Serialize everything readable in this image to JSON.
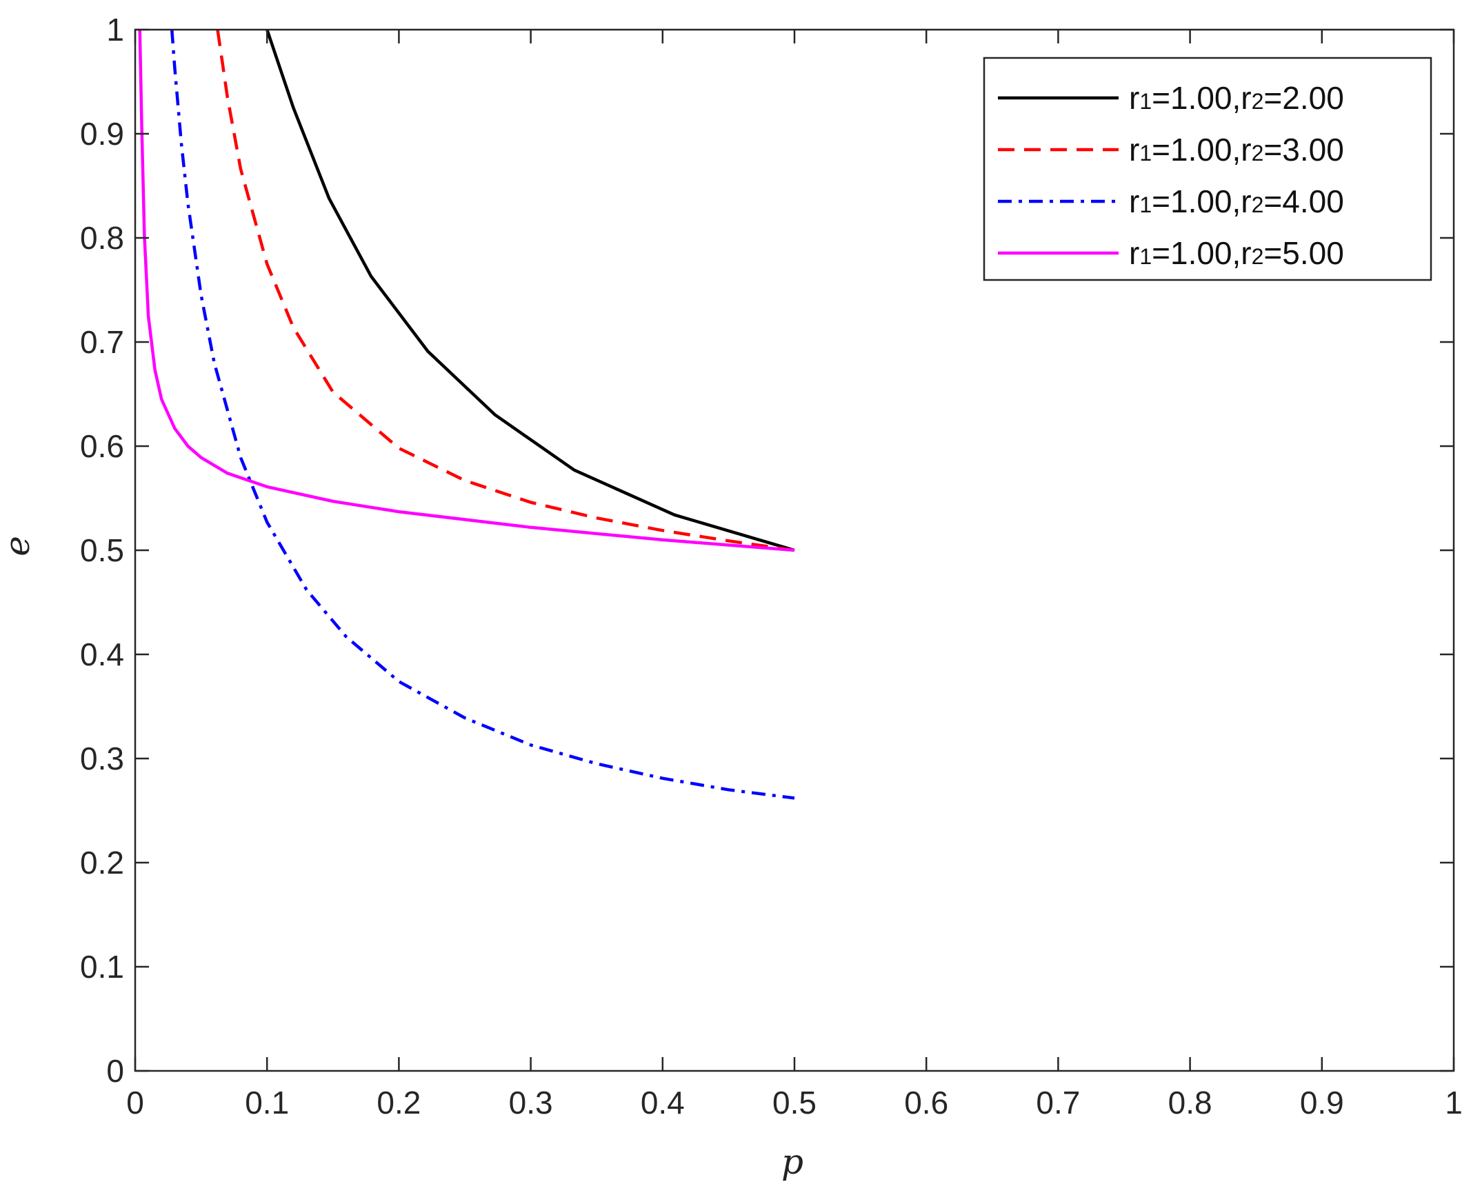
{
  "chart_data": {
    "type": "line",
    "xlabel": "p",
    "ylabel": "e",
    "xlim": [
      0,
      1
    ],
    "ylim": [
      0,
      1
    ],
    "xticks": [
      0,
      0.1,
      0.2,
      0.3,
      0.4,
      0.5,
      0.6,
      0.7,
      0.8,
      0.9,
      1
    ],
    "xtick_labels": [
      "0",
      "0.1",
      "0.2",
      "0.3",
      "0.4",
      "0.5",
      "0.6",
      "0.7",
      "0.8",
      "0.9",
      "1"
    ],
    "yticks": [
      0,
      0.1,
      0.2,
      0.3,
      0.4,
      0.5,
      0.6,
      0.7,
      0.8,
      0.9,
      1
    ],
    "ytick_labels": [
      "0",
      "0.1",
      "0.2",
      "0.3",
      "0.4",
      "0.5",
      "0.6",
      "0.7",
      "0.8",
      "0.9",
      "1"
    ],
    "grid": false,
    "legend_position": "top-right",
    "series": [
      {
        "name": "r1=1.00,r2=2.00",
        "label_parts": [
          [
            "r",
            "1",
            "=1.00,r",
            "2",
            "=2.00"
          ]
        ],
        "color": "#000000",
        "style": "solid",
        "x": [
          0.1,
          0.12,
          0.147,
          0.179,
          0.222,
          0.273,
          0.333,
          0.409,
          0.5
        ],
        "y": [
          1.0,
          0.925,
          0.838,
          0.763,
          0.691,
          0.63,
          0.577,
          0.534,
          0.5
        ]
      },
      {
        "name": "r1=1.00,r2=3.00",
        "label_parts": [
          [
            "r",
            "1",
            "=1.00,r",
            "2",
            "=3.00"
          ]
        ],
        "color": "#ff0000",
        "style": "dashed",
        "x": [
          0.0625,
          0.07,
          0.08,
          0.1,
          0.12,
          0.15,
          0.2,
          0.25,
          0.3,
          0.35,
          0.4,
          0.45,
          0.5
        ],
        "y": [
          1.0,
          0.935,
          0.866,
          0.775,
          0.714,
          0.652,
          0.598,
          0.567,
          0.546,
          0.531,
          0.519,
          0.509,
          0.5
        ]
      },
      {
        "name": "r1=1.00,r2=4.00",
        "label_parts": [
          [
            "r",
            "1",
            "=1.00,r",
            "2",
            "=4.00"
          ]
        ],
        "color": "#0000ff",
        "style": "dashdot",
        "x": [
          0.0278,
          0.03,
          0.035,
          0.04,
          0.05,
          0.06,
          0.08,
          0.1,
          0.13,
          0.16,
          0.2,
          0.25,
          0.3,
          0.35,
          0.4,
          0.45,
          0.5
        ],
        "y": [
          1.0,
          0.963,
          0.891,
          0.833,
          0.745,
          0.68,
          0.589,
          0.527,
          0.462,
          0.417,
          0.374,
          0.339,
          0.313,
          0.295,
          0.281,
          0.27,
          0.262
        ]
      },
      {
        "name": "r1=1.00,r2=5.00",
        "label_parts": [
          [
            "r",
            "1",
            "=1.00,r",
            "2",
            "=5.00"
          ]
        ],
        "color": "#ff00ff",
        "style": "solid",
        "x": [
          0.0035,
          0.005,
          0.007,
          0.01,
          0.015,
          0.02,
          0.03,
          0.04,
          0.05,
          0.07,
          0.1,
          0.15,
          0.2,
          0.3,
          0.4,
          0.5
        ],
        "y": [
          1.0,
          0.905,
          0.802,
          0.725,
          0.673,
          0.645,
          0.617,
          0.6,
          0.589,
          0.574,
          0.561,
          0.547,
          0.537,
          0.522,
          0.51,
          0.5
        ]
      }
    ]
  }
}
